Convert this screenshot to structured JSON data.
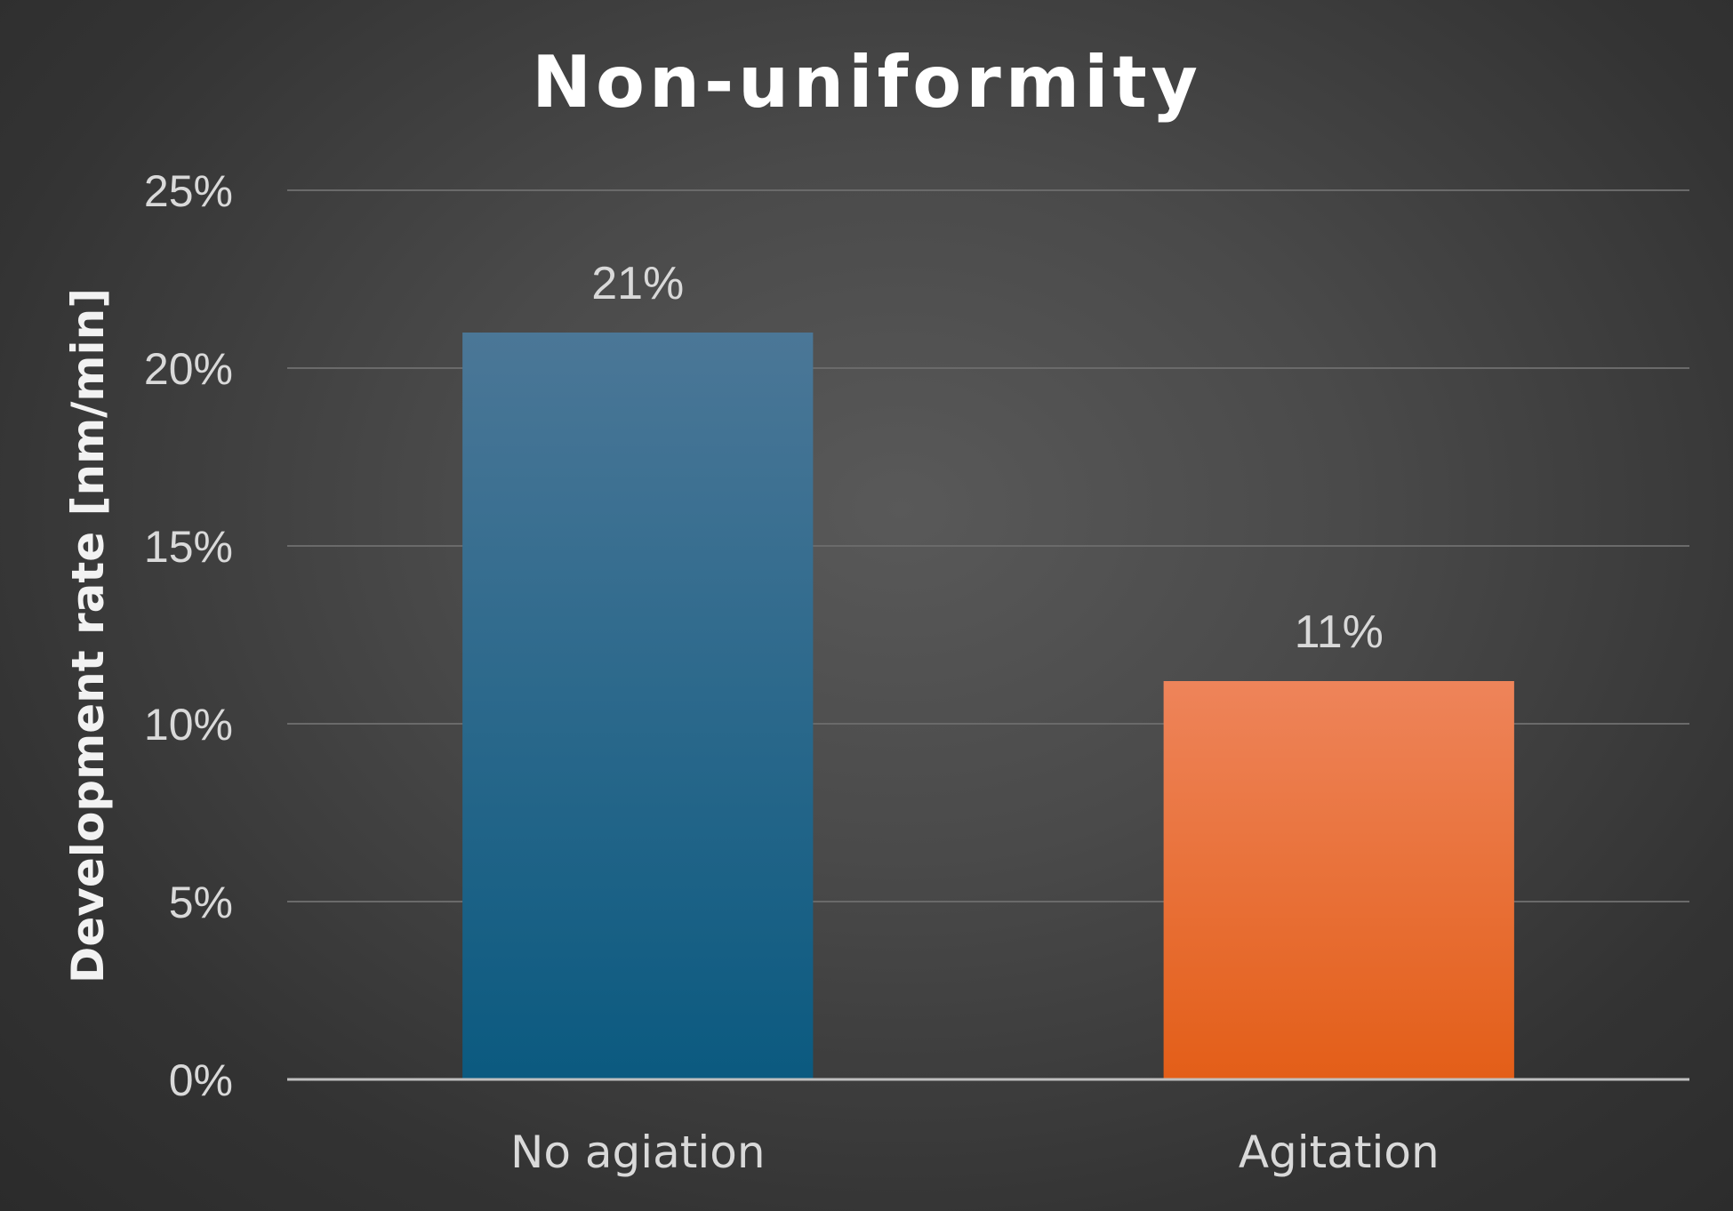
{
  "chart_data": {
    "type": "bar",
    "title": "Non-uniformity",
    "ylabel": "Development rate [nm/min]",
    "xlabel": "",
    "categories": [
      "No agiation",
      "Agitation"
    ],
    "values": [
      0.21,
      0.112
    ],
    "data_labels": [
      "21%",
      "11%"
    ],
    "ylim": [
      0,
      0.25
    ],
    "yticks": [
      0,
      0.05,
      0.1,
      0.15,
      0.2,
      0.25
    ],
    "ytick_labels": [
      "0%",
      "5%",
      "10%",
      "15%",
      "20%",
      "25%"
    ],
    "grid": true,
    "legend": "none",
    "colors": [
      {
        "top": "#4b7797",
        "bottom": "#0b5a80"
      },
      {
        "top": "#ee845a",
        "bottom": "#e35e18"
      }
    ],
    "background": "#3a3a3a"
  }
}
